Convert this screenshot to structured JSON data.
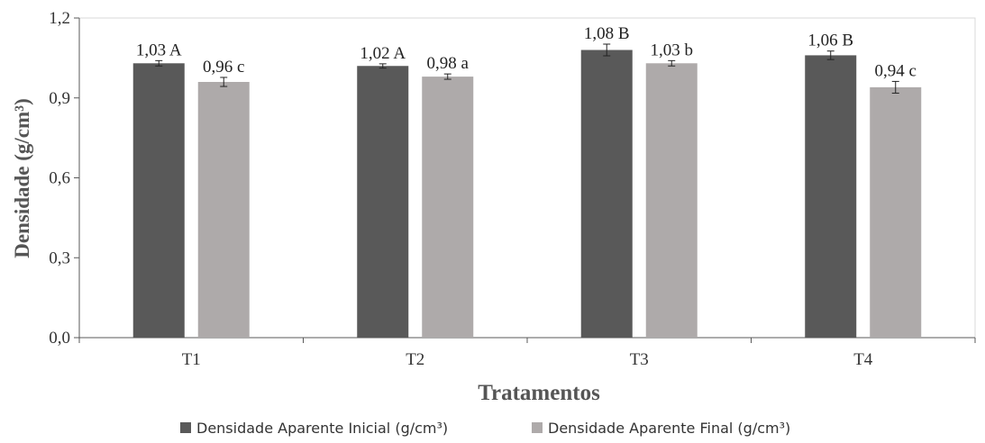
{
  "chart_data": {
    "type": "bar",
    "categories": [
      "T1",
      "T2",
      "T3",
      "T4"
    ],
    "series": [
      {
        "name": "Densidade Aparente Inicial (g/cm³)",
        "color": "#595959",
        "values": [
          1.03,
          1.02,
          1.08,
          1.06
        ],
        "errors": [
          0.01,
          0.008,
          0.022,
          0.016
        ],
        "labels": [
          "1,03 A",
          "1,02 A",
          "1,08 B",
          "1,06 B"
        ]
      },
      {
        "name": "Densidade Aparente Final (g/cm³)",
        "color": "#aeaaaa",
        "values": [
          0.96,
          0.98,
          1.03,
          0.94
        ],
        "errors": [
          0.017,
          0.01,
          0.01,
          0.022
        ],
        "labels": [
          "0,96 c",
          "0,98 a",
          "1,03 b",
          "0,94 c"
        ]
      }
    ],
    "yticks": [
      "0,0",
      "0,3",
      "0,6",
      "0,9",
      "1,2"
    ],
    "ylim": [
      0,
      1.2
    ],
    "xlabel": "Tratamentos",
    "ylabel": "Densidade  (g/cm³)",
    "grid": false,
    "legend_position": "bottom",
    "error_bars": true
  }
}
